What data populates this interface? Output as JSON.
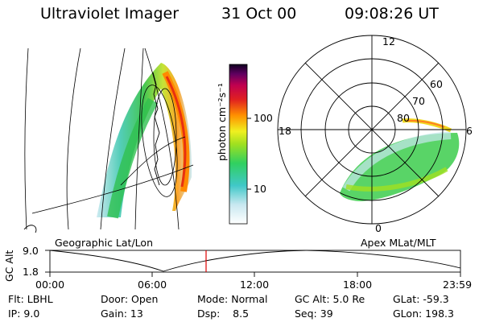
{
  "header": {
    "title": "Ultraviolet Imager",
    "date": "31 Oct 00",
    "time": "09:08:26 UT"
  },
  "colorbar": {
    "unit_label": "photon cm⁻²s⁻¹",
    "ticks": [
      "100",
      "10"
    ]
  },
  "polar_plot": {
    "mlt_labels": [
      "12",
      "18",
      "6",
      "0"
    ],
    "mlat_labels": [
      "60",
      "70",
      "80"
    ]
  },
  "panel_labels": {
    "left": "Geographic Lat/Lon",
    "right": "Apex MLat/MLT"
  },
  "altitude_plot": {
    "axis_label": "GC Alt",
    "y_ticks": [
      "9.0",
      "1.8"
    ],
    "x_ticks": [
      "00:00",
      "06:00",
      "12:00",
      "18:00",
      "23:59"
    ],
    "marker_time": "09:08"
  },
  "info": {
    "filter": "Flt: LBHL",
    "ip": "IP: 9.0",
    "door": "Door: Open",
    "gain": "Gain: 13",
    "mode": "Mode: Normal",
    "dsp": "Dsp:    8.5",
    "gc_alt": "GC Alt: 5.0 Re",
    "seq": "Seq: 39",
    "glat": "GLat: -59.3",
    "glon": "GLon: 198.3"
  },
  "colors": {
    "marker": "#e00000",
    "lines": "#000000"
  }
}
